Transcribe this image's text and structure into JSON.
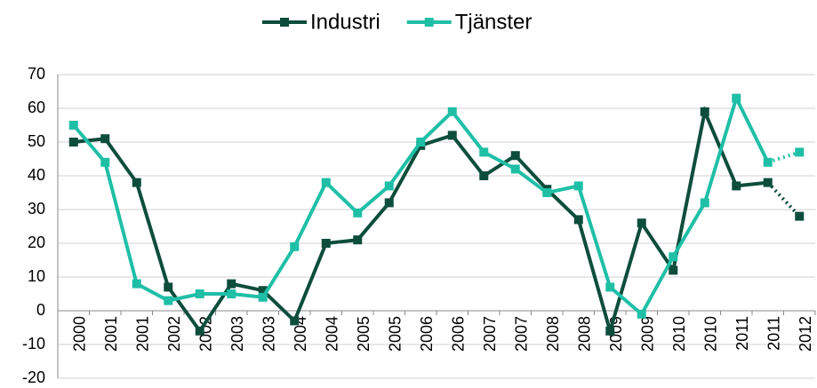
{
  "chart_data": {
    "type": "line",
    "categories": [
      "2000",
      "2001",
      "2001",
      "2002",
      "2002",
      "2003",
      "2003",
      "2004",
      "2004",
      "2005",
      "2005",
      "2006",
      "2006",
      "2007",
      "2007",
      "2008",
      "2008",
      "2009",
      "2009",
      "2010",
      "2010",
      "2011",
      "2011",
      "2012"
    ],
    "series": [
      {
        "name": "Industri",
        "color": "#0d4d3c",
        "dash_from": 22,
        "values": [
          50,
          51,
          38,
          7,
          -6,
          8,
          6,
          -3,
          20,
          21,
          32,
          49,
          52,
          40,
          46,
          36,
          27,
          -6,
          26,
          12,
          59,
          37,
          38,
          28
        ]
      },
      {
        "name": "Tjänster",
        "color": "#1fbfa6",
        "dash_from": 22,
        "values": [
          55,
          44,
          8,
          3,
          5,
          5,
          4,
          19,
          38,
          29,
          37,
          50,
          59,
          47,
          42,
          35,
          37,
          7,
          -1,
          16,
          32,
          63,
          44,
          47
        ]
      }
    ],
    "ylim": [
      -20,
      70
    ],
    "yticks": [
      -20,
      -10,
      0,
      10,
      20,
      30,
      40,
      50,
      60,
      70
    ],
    "grid": true,
    "legend": "top"
  }
}
